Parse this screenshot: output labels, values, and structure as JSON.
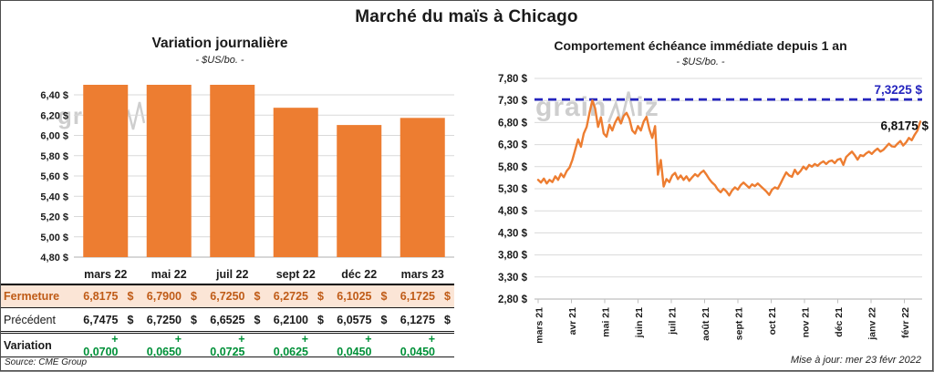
{
  "page": {
    "title": "Marché du maïs à Chicago",
    "source": "Source: CME Group",
    "updated": "Mise à jour: mer 23 févr 2022"
  },
  "watermark": {
    "text_start": "grain",
    "text_end": "iz",
    "full": "grainwiz"
  },
  "colors": {
    "series_orange": "#ED7D31",
    "reference_blue": "#2525BE",
    "variation_green": "#009038",
    "fermeture_text": "#BF5B17",
    "fermeture_bg": "#FBE5D6",
    "gridline": "#D9D9D9",
    "axis": "#BFBFBF",
    "watermark_gray": "#C9C9C9"
  },
  "chart_data": [
    {
      "type": "bar",
      "title": "Variation journalière",
      "subtitle": "- $US/bo. -",
      "categories": [
        "mars 22",
        "mai 22",
        "juil 22",
        "sept 22",
        "déc 22",
        "mars 23"
      ],
      "values": [
        6.8175,
        6.79,
        6.725,
        6.2725,
        6.1025,
        6.1725
      ],
      "bar_color": "#ED7D31",
      "ylim": [
        4.8,
        6.5
      ],
      "ytick_step": 0.2,
      "yticks": [
        "6,40 $",
        "6,20 $",
        "6,00 $",
        "5,80 $",
        "5,60 $",
        "5,40 $",
        "5,20 $",
        "5,00 $",
        "4,80 $"
      ],
      "grid": true,
      "note": "bars taller than axis max are clipped at plot top"
    },
    {
      "type": "line",
      "title": "Comportement échéance immédiate depuis 1 an",
      "subtitle": "- $US/bo. -",
      "x_ticklabels": [
        "mars 21",
        "avr 21",
        "mai 21",
        "juin 21",
        "juil 21",
        "août 21",
        "sept 21",
        "oct 21",
        "nov 21",
        "déc 21",
        "janv 22",
        "févr 22"
      ],
      "ylim": [
        2.8,
        7.8
      ],
      "ytick_step": 0.5,
      "yticks": [
        "7,80 $",
        "7,30 $",
        "6,80 $",
        "6,30 $",
        "5,80 $",
        "5,30 $",
        "4,80 $",
        "4,30 $",
        "3,80 $",
        "3,30 $",
        "2,80 $"
      ],
      "grid": true,
      "reference_line": {
        "value": 7.3225,
        "label": "7,3225 $",
        "style": "dashed",
        "color": "#2525BE"
      },
      "last_point_label": {
        "value": 6.8175,
        "label": "6,8175 $"
      },
      "series": [
        {
          "name": "échéance immédiate",
          "color": "#ED7D31",
          "values": [
            5.5,
            5.44,
            5.53,
            5.42,
            5.5,
            5.45,
            5.58,
            5.5,
            5.64,
            5.56,
            5.7,
            5.78,
            5.95,
            6.18,
            6.42,
            6.25,
            6.55,
            6.7,
            7.02,
            7.3,
            7.12,
            6.7,
            6.92,
            6.55,
            6.48,
            6.75,
            6.62,
            6.8,
            6.92,
            6.78,
            6.95,
            7.02,
            6.88,
            6.62,
            6.55,
            6.72,
            6.62,
            6.82,
            6.93,
            6.65,
            6.45,
            6.72,
            5.62,
            5.95,
            5.35,
            5.52,
            5.45,
            5.6,
            5.66,
            5.52,
            5.6,
            5.5,
            5.58,
            5.48,
            5.56,
            5.63,
            5.58,
            5.66,
            5.71,
            5.62,
            5.52,
            5.44,
            5.38,
            5.28,
            5.22,
            5.3,
            5.24,
            5.15,
            5.26,
            5.33,
            5.28,
            5.38,
            5.44,
            5.38,
            5.32,
            5.4,
            5.36,
            5.42,
            5.36,
            5.3,
            5.24,
            5.16,
            5.28,
            5.33,
            5.3,
            5.42,
            5.55,
            5.67,
            5.6,
            5.57,
            5.73,
            5.63,
            5.7,
            5.8,
            5.74,
            5.84,
            5.8,
            5.86,
            5.82,
            5.88,
            5.92,
            5.86,
            5.92,
            5.94,
            5.88,
            5.96,
            5.98,
            5.84,
            6.02,
            6.08,
            6.14,
            6.06,
            5.96,
            6.06,
            6.04,
            6.1,
            6.14,
            6.09,
            6.16,
            6.21,
            6.14,
            6.18,
            6.25,
            6.32,
            6.26,
            6.25,
            6.32,
            6.38,
            6.28,
            6.35,
            6.45,
            6.4,
            6.52,
            6.62,
            6.82
          ]
        }
      ]
    }
  ],
  "table": {
    "columns": [
      "mars 22",
      "mai 22",
      "juil 22",
      "sept 22",
      "déc 22",
      "mars 23"
    ],
    "rows": [
      {
        "label": "Fermeture",
        "style": "fermeture",
        "unit": "$",
        "values": [
          "6,8175",
          "6,7900",
          "6,7250",
          "6,2725",
          "6,1025",
          "6,1725"
        ]
      },
      {
        "label": "Précédent",
        "style": "precedent",
        "unit": "$",
        "values": [
          "6,7475",
          "6,7250",
          "6,6525",
          "6,2100",
          "6,0575",
          "6,1275"
        ]
      },
      {
        "label": "Variation",
        "style": "variation",
        "unit": "",
        "values": [
          "+ 0,0700",
          "+ 0,0650",
          "+ 0,0725",
          "+ 0,0625",
          "+ 0,0450",
          "+ 0,0450"
        ]
      }
    ]
  }
}
